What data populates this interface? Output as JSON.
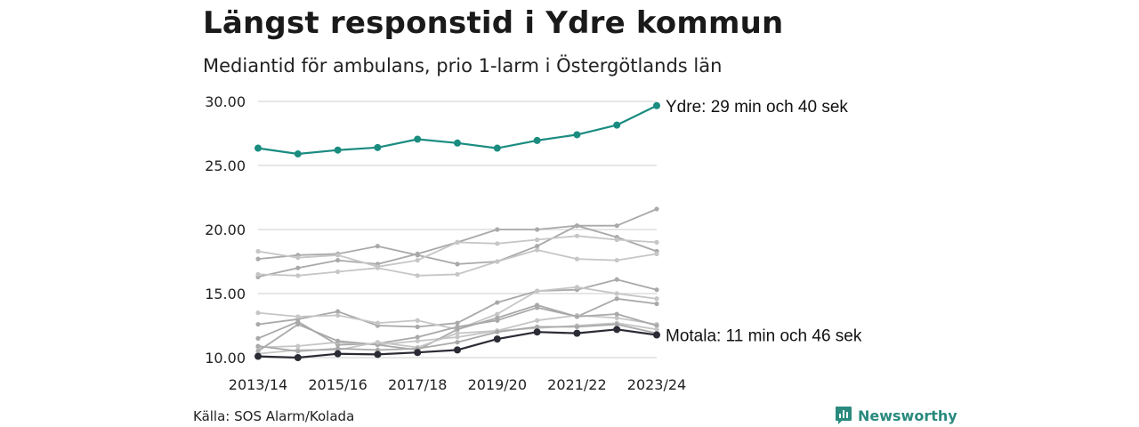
{
  "title": "Längst responstid i Ydre kommun",
  "subtitle": "Mediantid för ambulans, prio 1-larm i Östergötlands län",
  "source": "Källa: SOS Alarm/Kolada",
  "brand": "Newsworthy",
  "icon": "newsworthy-logo-icon",
  "colors": {
    "highlight": "#1a8c80",
    "lowlight": "#2b2b36",
    "background_lines": [
      "#a9a9a9",
      "#c6c6c6"
    ],
    "grid": "#dddddd",
    "brand": "#2a8a7e"
  },
  "chart_data": {
    "type": "line",
    "title": "Längst responstid i Ydre kommun",
    "subtitle": "Mediantid för ambulans, prio 1-larm i Östergötlands län",
    "x": [
      "2013/14",
      "2014/15",
      "2015/16",
      "2016/17",
      "2017/18",
      "2018/19",
      "2019/20",
      "2020/21",
      "2021/22",
      "2022/23",
      "2023/24"
    ],
    "x_tick_labels": [
      "2013/14",
      "2015/16",
      "2017/18",
      "2019/20",
      "2021/22",
      "2023/24"
    ],
    "ylim": [
      10,
      30
    ],
    "y_ticks": [
      "10.00",
      "15.00",
      "20.00",
      "25.00",
      "30.00"
    ],
    "grid": "horizontal",
    "highlighted": [
      {
        "name": "Ydre",
        "label": "Ydre: 29 min och 40 sek",
        "color": "#1a8c80",
        "values": [
          26.35,
          25.9,
          26.2,
          26.4,
          27.05,
          26.75,
          26.35,
          26.95,
          27.4,
          28.15,
          29.67
        ]
      },
      {
        "name": "Motala",
        "label": "Motala: 11 min och 46 sek",
        "color": "#2b2b36",
        "values": [
          10.1,
          10.0,
          10.3,
          10.25,
          10.4,
          10.6,
          11.45,
          12.0,
          11.9,
          12.2,
          11.77
        ]
      }
    ],
    "background_series": [
      {
        "color": "#a9a9a9",
        "values": [
          16.3,
          17.0,
          17.6,
          17.3,
          18.1,
          19.0,
          20.0,
          20.0,
          20.3,
          20.3,
          21.6
        ]
      },
      {
        "color": "#a9a9a9",
        "values": [
          17.7,
          18.0,
          18.1,
          18.7,
          18.0,
          17.3,
          17.5,
          18.7,
          20.3,
          19.4,
          18.3
        ]
      },
      {
        "color": "#c6c6c6",
        "values": [
          18.3,
          17.8,
          18.0,
          17.1,
          17.6,
          19.0,
          18.9,
          19.2,
          19.5,
          19.2,
          19.0
        ]
      },
      {
        "color": "#c6c6c6",
        "values": [
          16.5,
          16.4,
          16.7,
          17.0,
          16.4,
          16.5,
          17.5,
          18.4,
          17.7,
          17.6,
          18.1
        ]
      },
      {
        "color": "#a9a9a9",
        "values": [
          12.6,
          13.0,
          13.6,
          12.5,
          12.4,
          12.7,
          14.3,
          15.2,
          15.3,
          16.1,
          15.3
        ]
      },
      {
        "color": "#c6c6c6",
        "values": [
          13.5,
          13.2,
          13.3,
          12.7,
          12.9,
          12.2,
          13.4,
          15.2,
          15.5,
          15.0,
          14.6
        ]
      },
      {
        "color": "#a9a9a9",
        "values": [
          11.5,
          12.8,
          11.0,
          11.1,
          11.6,
          12.4,
          12.9,
          13.9,
          13.2,
          14.6,
          14.2
        ]
      },
      {
        "color": "#c6c6c6",
        "values": [
          10.8,
          10.9,
          11.2,
          11.0,
          11.3,
          11.6,
          12.1,
          12.9,
          13.3,
          13.1,
          12.6
        ]
      },
      {
        "color": "#a9a9a9",
        "values": [
          10.5,
          12.6,
          11.3,
          11.0,
          10.6,
          12.2,
          13.1,
          14.1,
          13.2,
          13.4,
          12.5
        ]
      },
      {
        "color": "#c6c6c6",
        "values": [
          10.3,
          10.6,
          10.6,
          11.2,
          10.8,
          11.9,
          12.1,
          12.3,
          12.5,
          12.7,
          12.2
        ]
      },
      {
        "color": "#a9a9a9",
        "values": [
          10.9,
          10.5,
          10.7,
          10.6,
          10.7,
          11.2,
          12.0,
          12.4,
          12.4,
          12.6,
          11.9
        ]
      }
    ]
  }
}
